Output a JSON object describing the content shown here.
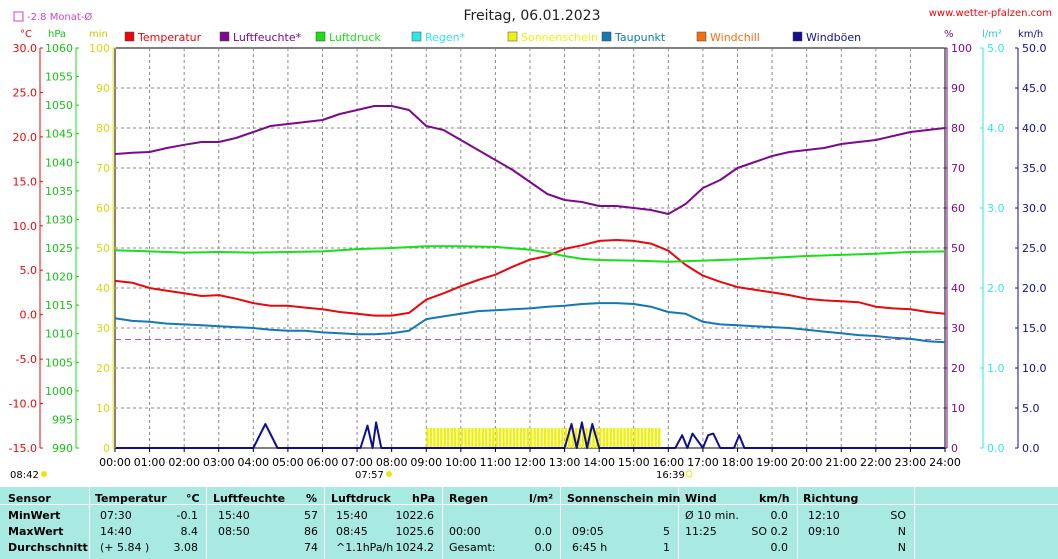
{
  "header": {
    "title": "Freitag, 06.01.2023",
    "site": "www.wetter-pfalzen.com",
    "monat_mean": "-2.8 Monat-Ø"
  },
  "units": {
    "temp": "°C",
    "hpa": "hPa",
    "min": "min",
    "pct": "%",
    "lm2": "l/m²",
    "kmh": "km/h"
  },
  "legend": [
    {
      "label": "Temperatur",
      "color": "#e8080c"
    },
    {
      "label": "Luftfeuchte*",
      "color": "#7c0a8c"
    },
    {
      "label": "Luftdruck",
      "color": "#18e018"
    },
    {
      "label": "Regen*",
      "color": "#2ee8e8"
    },
    {
      "label": "Sonnenschein",
      "color": "#f0f010"
    },
    {
      "label": "Taupunkt",
      "color": "#1478b4"
    },
    {
      "label": "Windchill",
      "color": "#f07010"
    },
    {
      "label": "Windböen",
      "color": "#10108c"
    }
  ],
  "sun_markers": {
    "sunrise": "07:57",
    "sunset": "16:39",
    "start_time": "08:42"
  },
  "chart_data": {
    "type": "line",
    "x_unit": "hours",
    "xlim": [
      0,
      24
    ],
    "x_ticks": [
      "00:00",
      "01:00",
      "02:00",
      "03:00",
      "04:00",
      "05:00",
      "06:00",
      "07:00",
      "08:00",
      "09:00",
      "10:00",
      "11:00",
      "12:00",
      "13:00",
      "14:00",
      "15:00",
      "16:00",
      "17:00",
      "18:00",
      "19:00",
      "20:00",
      "21:00",
      "22:00",
      "23:00",
      "24:00"
    ],
    "axes": {
      "temp": {
        "lim": [
          -15,
          30
        ],
        "ticks": [
          "30.0",
          "25.0",
          "20.0",
          "15.0",
          "10.0",
          "5.0",
          "0.0",
          "-5.0",
          "-10.0",
          "-15.0"
        ],
        "color": "#e8080c"
      },
      "pressure": {
        "lim": [
          990,
          1060
        ],
        "ticks": [
          "1060",
          "1055",
          "1050",
          "1045",
          "1040",
          "1035",
          "1030",
          "1025",
          "1020",
          "1015",
          "1010",
          "1005",
          "1000",
          "995",
          "990"
        ],
        "color": "#18c018"
      },
      "sun_min": {
        "lim": [
          0,
          100
        ],
        "ticks": [
          "100",
          "90",
          "80",
          "70",
          "60",
          "50",
          "40",
          "30",
          "20",
          "10",
          "0"
        ],
        "color": "#d8d810"
      },
      "humidity": {
        "lim": [
          0,
          100
        ],
        "ticks": [
          "100",
          "90",
          "80",
          "70",
          "60",
          "50",
          "40",
          "30",
          "20",
          "10",
          "0"
        ],
        "color": "#7c0a8c"
      },
      "rain": {
        "lim": [
          0,
          5
        ],
        "ticks": [
          "5.0",
          "4.0",
          "3.0",
          "2.0",
          "1.0",
          "0.0"
        ],
        "color": "#2ee8e8"
      },
      "wind": {
        "lim": [
          0,
          50
        ],
        "ticks": [
          "50.0",
          "45.0",
          "40.0",
          "35.0",
          "30.0",
          "25.0",
          "20.0",
          "15.0",
          "10.0",
          "5.0",
          "0.0"
        ],
        "color": "#10108c"
      }
    },
    "monthly_mean_temp": -2.8,
    "series": [
      {
        "name": "Temperatur",
        "axis": "temp",
        "color": "#e8080c",
        "x": [
          0,
          0.5,
          1,
          1.5,
          2,
          2.5,
          3,
          3.5,
          4,
          4.5,
          5,
          5.5,
          6,
          6.5,
          7,
          7.5,
          8,
          8.5,
          9,
          9.5,
          10,
          10.5,
          11,
          11.5,
          12,
          12.5,
          13,
          13.5,
          14,
          14.5,
          15,
          15.5,
          16,
          16.5,
          17,
          17.5,
          18,
          18.5,
          19,
          19.5,
          20,
          20.5,
          21,
          21.5,
          22,
          22.5,
          23,
          23.5,
          24
        ],
        "y": [
          3.8,
          3.6,
          3.0,
          2.7,
          2.4,
          2.1,
          2.2,
          1.8,
          1.3,
          1.0,
          1.0,
          0.8,
          0.6,
          0.3,
          0.1,
          -0.1,
          -0.1,
          0.2,
          1.7,
          2.4,
          3.2,
          3.9,
          4.5,
          5.4,
          6.2,
          6.6,
          7.4,
          7.8,
          8.3,
          8.4,
          8.3,
          8.0,
          7.2,
          5.6,
          4.4,
          3.7,
          3.1,
          2.8,
          2.5,
          2.2,
          1.8,
          1.6,
          1.5,
          1.4,
          0.9,
          0.7,
          0.6,
          0.3,
          0.1
        ]
      },
      {
        "name": "Luftfeuchte*",
        "axis": "humidity",
        "color": "#7c0a8c",
        "x": [
          0,
          0.5,
          1,
          1.5,
          2,
          2.5,
          3,
          3.5,
          4,
          4.5,
          5,
          5.5,
          6,
          6.5,
          7,
          7.5,
          8,
          8.5,
          9,
          9.5,
          10,
          10.5,
          11,
          11.5,
          12,
          12.5,
          13,
          13.5,
          14,
          14.5,
          15,
          15.5,
          16,
          16.5,
          17,
          17.5,
          18,
          18.5,
          19,
          19.5,
          20,
          20.5,
          21,
          21.5,
          22,
          22.5,
          23,
          23.5,
          24
        ],
        "y": [
          73.5,
          73.8,
          74,
          75,
          75.8,
          76.5,
          76.5,
          77.5,
          79,
          80.5,
          81,
          81.5,
          82,
          83.5,
          84.5,
          85.5,
          85.5,
          84.5,
          80.5,
          79.5,
          77,
          74.5,
          72,
          69.5,
          66.5,
          63.5,
          62,
          61.5,
          60.5,
          60.5,
          60,
          59.5,
          58.5,
          61,
          65,
          67,
          70,
          71.5,
          73,
          74,
          74.5,
          75,
          76,
          76.5,
          77,
          78,
          79,
          79.5,
          80
        ]
      },
      {
        "name": "Luftdruck",
        "axis": "pressure",
        "color": "#18e018",
        "x": [
          0,
          1,
          2,
          3,
          4,
          5,
          6,
          7,
          8,
          9,
          10,
          11,
          12,
          12.5,
          13,
          13.5,
          14,
          15,
          16,
          17,
          18,
          19,
          20,
          21,
          22,
          23,
          24
        ],
        "y": [
          1024.6,
          1024.4,
          1024.2,
          1024.3,
          1024.2,
          1024.3,
          1024.4,
          1024.8,
          1025.0,
          1025.3,
          1025.3,
          1025.2,
          1024.7,
          1024.2,
          1023.6,
          1023.1,
          1022.9,
          1022.8,
          1022.6,
          1022.8,
          1023.0,
          1023.3,
          1023.6,
          1023.8,
          1024.0,
          1024.3,
          1024.4
        ]
      },
      {
        "name": "Taupunkt",
        "axis": "temp",
        "color": "#1478b4",
        "x": [
          0,
          0.5,
          1,
          1.5,
          2,
          2.5,
          3,
          3.5,
          4,
          4.5,
          5,
          5.5,
          6,
          6.5,
          7,
          7.5,
          8,
          8.5,
          9,
          9.5,
          10,
          10.5,
          11,
          11.5,
          12,
          12.5,
          13,
          13.5,
          14,
          14.5,
          15,
          15.5,
          16,
          16.5,
          17,
          17.5,
          18,
          18.5,
          19,
          19.5,
          20,
          20.5,
          21,
          21.5,
          22,
          22.5,
          23,
          23.5,
          24
        ],
        "y": [
          -0.4,
          -0.7,
          -0.8,
          -1.0,
          -1.1,
          -1.2,
          -1.3,
          -1.4,
          -1.5,
          -1.7,
          -1.8,
          -1.8,
          -2.0,
          -2.1,
          -2.2,
          -2.2,
          -2.1,
          -1.8,
          -0.5,
          -0.2,
          0.1,
          0.4,
          0.5,
          0.6,
          0.7,
          0.9,
          1.0,
          1.2,
          1.3,
          1.3,
          1.2,
          0.9,
          0.3,
          0.1,
          -0.8,
          -1.1,
          -1.2,
          -1.3,
          -1.4,
          -1.5,
          -1.7,
          -1.9,
          -2.1,
          -2.3,
          -2.4,
          -2.6,
          -2.7,
          -3.0,
          -3.1
        ]
      },
      {
        "name": "Windböen",
        "axis": "wind",
        "color": "#10108c",
        "x": [
          0,
          4,
          4.35,
          4.7,
          5,
          7.1,
          7.3,
          7.45,
          7.55,
          7.7,
          8,
          13.0,
          13.2,
          13.35,
          13.5,
          13.65,
          13.8,
          14,
          16.2,
          16.4,
          16.55,
          16.7,
          17,
          17.15,
          17.3,
          17.5,
          17.9,
          18.05,
          18.2,
          24
        ],
        "y": [
          0,
          0,
          3.0,
          0,
          0,
          0,
          2.8,
          0,
          3.2,
          0,
          0,
          0,
          3.0,
          0,
          3.2,
          0,
          3.0,
          0,
          0,
          1.6,
          0,
          1.8,
          0,
          1.6,
          1.8,
          0,
          0,
          1.6,
          0,
          0
        ]
      }
    ],
    "sunshine": {
      "minutes_per_slot": 5,
      "x": [
        9,
        9.1,
        9.2,
        9.3,
        9.4,
        9.5,
        9.6,
        9.7,
        9.8,
        9.9,
        10,
        10.1,
        10.2,
        10.3,
        10.4,
        10.5,
        10.6,
        10.7,
        10.8,
        10.9,
        11,
        11.1,
        11.2,
        11.3,
        11.4,
        11.5,
        11.6,
        11.7,
        11.8,
        11.9,
        12,
        12.1,
        12.2,
        12.3,
        12.4,
        12.5,
        12.6,
        12.7,
        12.8,
        12.9,
        13,
        13.1,
        13.2,
        13.3,
        13.4,
        13.5,
        13.6,
        13.7,
        13.8,
        13.9,
        14,
        14.1,
        14.2,
        14.3,
        14.4,
        14.5,
        14.6,
        14.7,
        14.8,
        14.9,
        15,
        15.1,
        15.2,
        15.3,
        15.4,
        15.5,
        15.6,
        15.7
      ],
      "y": [
        5,
        5,
        5,
        5,
        5,
        5,
        5,
        5,
        5,
        5,
        5,
        5,
        5,
        5,
        5,
        5,
        5,
        5,
        5,
        5,
        5,
        5,
        5,
        5,
        5,
        5,
        5,
        5,
        5,
        5,
        5,
        5,
        5,
        5,
        5,
        5,
        5,
        5,
        5,
        5,
        5,
        5,
        5,
        5,
        5,
        5,
        5,
        5,
        5,
        5,
        5,
        5,
        5,
        5,
        5,
        5,
        5,
        5,
        5,
        5,
        5,
        5,
        5,
        5,
        5,
        5,
        5,
        5
      ]
    }
  },
  "table": {
    "headers": {
      "sensor": "Sensor",
      "temp": "Temperatur",
      "temp_unit": "°C",
      "hum": "Luftfeuchte",
      "hum_unit": "%",
      "press": "Luftdruck",
      "press_unit": "hPa",
      "rain": "Regen",
      "rain_unit": "l/m²",
      "sun": "Sonnenschein min",
      "wind": "Wind",
      "wind_unit": "km/h",
      "dir": "Richtung"
    },
    "rows": [
      {
        "label": "MinWert",
        "temp_time": "07:30",
        "temp_val": "-0.1",
        "hum_time": "15:40",
        "hum_val": "57",
        "press_time": "15:40",
        "press_val": "1022.6",
        "rain_time": "",
        "rain_val": "",
        "sun_time": "",
        "sun_val": "",
        "wind_time": "Ø 10 min.",
        "wind_val": "0.0",
        "dir_time": "12:10",
        "dir_val": "SO"
      },
      {
        "label": "MaxWert",
        "temp_time": "14:40",
        "temp_val": "8.4",
        "hum_time": "08:50",
        "hum_val": "86",
        "press_time": "08:45",
        "press_val": "1025.6",
        "rain_time": "00:00",
        "rain_val": "0.0",
        "sun_time": "09:05",
        "sun_val": "5",
        "wind_time": "11:25",
        "wind_val": "SO 0.2",
        "dir_time": "09:10",
        "dir_val": "N"
      },
      {
        "label": "Durchschnitt",
        "temp_time": "(+ 5.84 )",
        "temp_val": "3.08",
        "hum_time": "",
        "hum_val": "74",
        "press_time": "^1.1hPa/h",
        "press_val": "1024.2",
        "rain_time": "Gesamt:",
        "rain_val": "0.0",
        "sun_time": "6:45 h",
        "sun_val": "1",
        "wind_time": "",
        "wind_val": "0.0",
        "dir_time": "",
        "dir_val": "N"
      }
    ]
  }
}
